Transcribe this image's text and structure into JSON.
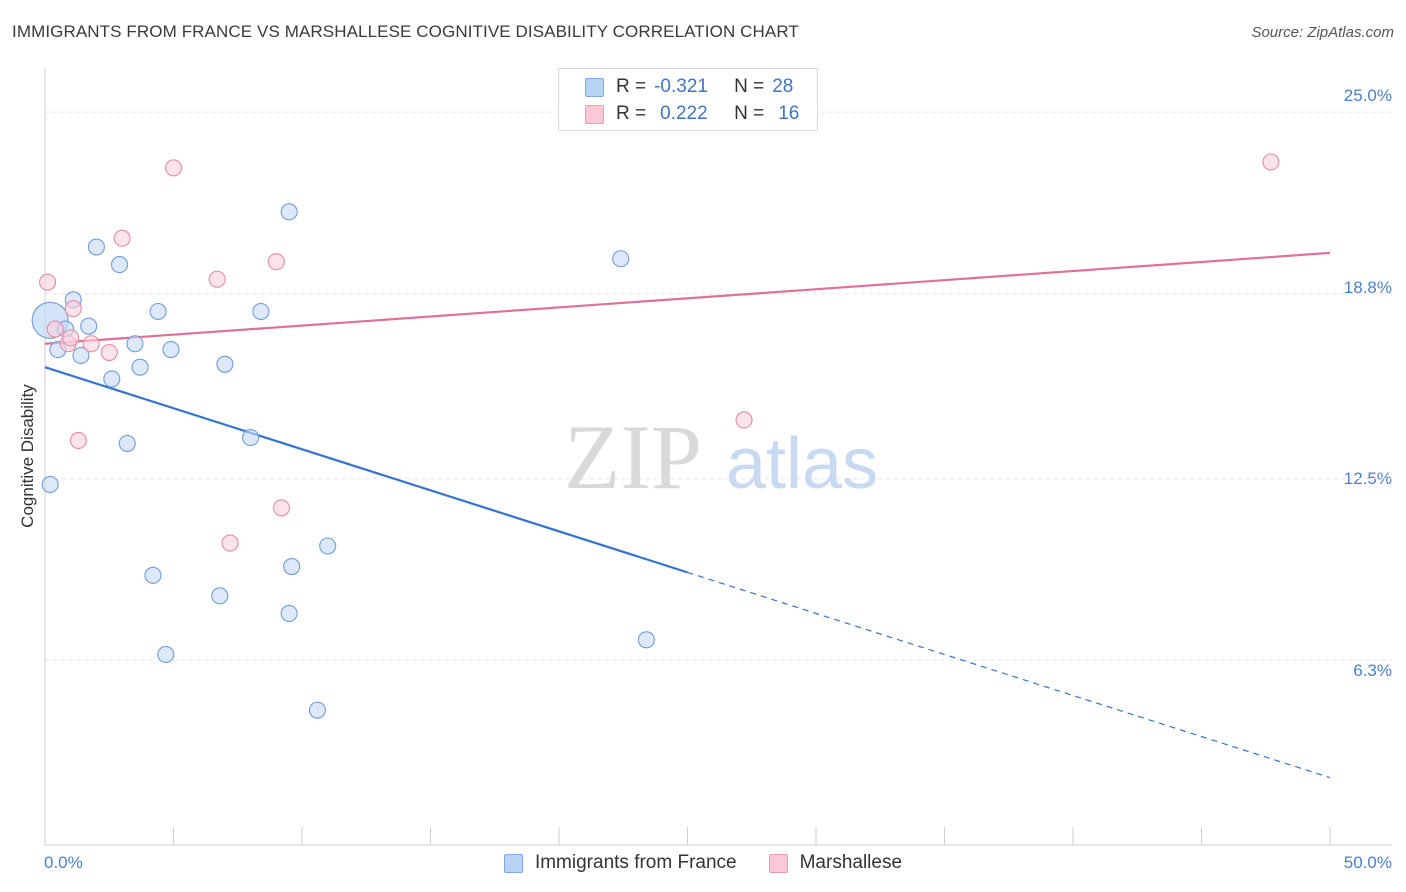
{
  "chart_data": {
    "type": "scatter",
    "title": "IMMIGRANTS FROM FRANCE VS MARSHALLESE COGNITIVE DISABILITY CORRELATION CHART",
    "source": "Source: ZipAtlas.com",
    "ylabel": "Cognitive Disability",
    "xlim": [
      0,
      50
    ],
    "ylim": [
      0,
      26.2
    ],
    "x_tick_labels": [
      "0.0%",
      "50.0%"
    ],
    "y_ticks": [
      {
        "value": 25.0,
        "label": "25.0%"
      },
      {
        "value": 18.8,
        "label": "18.8%"
      },
      {
        "value": 12.5,
        "label": "12.5%"
      },
      {
        "value": 6.3,
        "label": "6.3%"
      }
    ],
    "watermark": {
      "part1": "ZIP",
      "part2": "atlas"
    },
    "stats": [
      {
        "r_label": "R =",
        "r": "-0.321",
        "n_label": "N =",
        "n": "28"
      },
      {
        "r_label": "R =",
        "r": "0.222",
        "n_label": "N =",
        "n": "16"
      }
    ],
    "series": [
      {
        "name": "Immigrants from France",
        "color": "#6f9ce0",
        "fill": "#c6dbf6",
        "points": [
          [
            0.2,
            17.9
          ],
          [
            0.5,
            16.9
          ],
          [
            0.8,
            17.6
          ],
          [
            1.1,
            18.6
          ],
          [
            1.4,
            16.7
          ],
          [
            1.7,
            17.7
          ],
          [
            2.0,
            20.4
          ],
          [
            2.6,
            15.9
          ],
          [
            2.9,
            19.8
          ],
          [
            3.2,
            13.7
          ],
          [
            3.5,
            17.1
          ],
          [
            3.7,
            16.3
          ],
          [
            4.2,
            9.2
          ],
          [
            4.4,
            18.2
          ],
          [
            4.7,
            6.5
          ],
          [
            4.9,
            16.9
          ],
          [
            6.8,
            8.5
          ],
          [
            7.0,
            16.4
          ],
          [
            8.0,
            13.9
          ],
          [
            8.4,
            18.2
          ],
          [
            9.5,
            21.6
          ],
          [
            9.5,
            7.9
          ],
          [
            9.6,
            9.5
          ],
          [
            10.6,
            4.6
          ],
          [
            11.0,
            10.2
          ],
          [
            22.4,
            20.0
          ],
          [
            23.4,
            7.0
          ],
          [
            0.2,
            12.3
          ]
        ],
        "trend": {
          "x0": 0,
          "y0": 16.3,
          "x_solid_end": 25,
          "x1": 50,
          "y1": 2.3
        }
      },
      {
        "name": "Marshallese",
        "color": "#e98aa6",
        "fill": "#f9d0dc",
        "points": [
          [
            0.1,
            19.2
          ],
          [
            0.4,
            17.6
          ],
          [
            0.9,
            17.1
          ],
          [
            1.1,
            18.3
          ],
          [
            1.3,
            13.8
          ],
          [
            1.8,
            17.1
          ],
          [
            2.5,
            16.8
          ],
          [
            3.0,
            20.7
          ],
          [
            5.0,
            23.1
          ],
          [
            6.7,
            19.3
          ],
          [
            7.2,
            10.3
          ],
          [
            9.0,
            19.9
          ],
          [
            9.2,
            11.5
          ],
          [
            27.2,
            14.5
          ],
          [
            47.7,
            23.3
          ],
          [
            1.0,
            17.3
          ]
        ],
        "trend": {
          "x0": 0,
          "y0": 17.1,
          "x_solid_end": 50,
          "x1": 50,
          "y1": 20.2
        }
      }
    ]
  }
}
